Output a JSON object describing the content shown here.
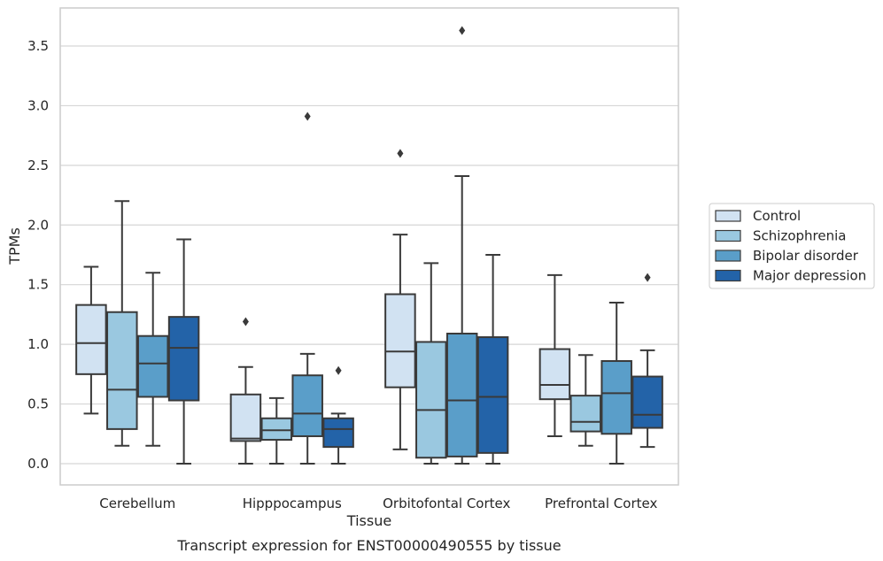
{
  "caption": "Transcript expression for ENST00000490555 by tissue",
  "chart_data": {
    "type": "box",
    "xlabel": "Tissue",
    "ylabel": "TPMs",
    "ylim": [
      -0.17,
      3.85
    ],
    "yticks": [
      0.0,
      0.5,
      1.0,
      1.5,
      2.0,
      2.5,
      3.0,
      3.5
    ],
    "ytick_labels": [
      "0.0",
      "0.5",
      "1.0",
      "1.5",
      "2.0",
      "2.5",
      "3.0",
      "3.5"
    ],
    "grid": "horizontal",
    "legend_placement": "right",
    "categories": [
      "Cerebellum",
      "Hipppocampus",
      "Orbitofontal Cortex",
      "Prefrontal Cortex"
    ],
    "series": [
      {
        "name": "Control",
        "color": "#d1e2f2",
        "boxes": [
          {
            "whisker_low": 0.42,
            "q1": 0.75,
            "median": 1.01,
            "q3": 1.33,
            "whisker_high": 1.65,
            "outliers": []
          },
          {
            "whisker_low": 0.0,
            "q1": 0.19,
            "median": 0.21,
            "q3": 0.58,
            "whisker_high": 0.81,
            "outliers": [
              1.19
            ]
          },
          {
            "whisker_low": 0.12,
            "q1": 0.64,
            "median": 0.94,
            "q3": 1.42,
            "whisker_high": 1.92,
            "outliers": [
              2.6
            ]
          },
          {
            "whisker_low": 0.23,
            "q1": 0.54,
            "median": 0.66,
            "q3": 0.96,
            "whisker_high": 1.58,
            "outliers": []
          }
        ]
      },
      {
        "name": "Schizophrenia",
        "color": "#9ac8e0",
        "boxes": [
          {
            "whisker_low": 0.15,
            "q1": 0.29,
            "median": 0.62,
            "q3": 1.27,
            "whisker_high": 2.2,
            "outliers": []
          },
          {
            "whisker_low": 0.0,
            "q1": 0.2,
            "median": 0.28,
            "q3": 0.38,
            "whisker_high": 0.55,
            "outliers": []
          },
          {
            "whisker_low": 0.0,
            "q1": 0.05,
            "median": 0.45,
            "q3": 1.02,
            "whisker_high": 1.68,
            "outliers": []
          },
          {
            "whisker_low": 0.15,
            "q1": 0.27,
            "median": 0.35,
            "q3": 0.57,
            "whisker_high": 0.91,
            "outliers": []
          }
        ]
      },
      {
        "name": "Bipolar disorder",
        "color": "#5a9ec9",
        "boxes": [
          {
            "whisker_low": 0.15,
            "q1": 0.56,
            "median": 0.84,
            "q3": 1.07,
            "whisker_high": 1.6,
            "outliers": []
          },
          {
            "whisker_low": 0.0,
            "q1": 0.23,
            "median": 0.42,
            "q3": 0.74,
            "whisker_high": 0.92,
            "outliers": [
              2.91
            ]
          },
          {
            "whisker_low": 0.0,
            "q1": 0.06,
            "median": 0.53,
            "q3": 1.09,
            "whisker_high": 2.41,
            "outliers": [
              3.63
            ]
          },
          {
            "whisker_low": 0.0,
            "q1": 0.25,
            "median": 0.59,
            "q3": 0.86,
            "whisker_high": 1.35,
            "outliers": []
          }
        ]
      },
      {
        "name": "Major depression",
        "color": "#2363a8",
        "boxes": [
          {
            "whisker_low": 0.0,
            "q1": 0.53,
            "median": 0.97,
            "q3": 1.23,
            "whisker_high": 1.88,
            "outliers": []
          },
          {
            "whisker_low": 0.0,
            "q1": 0.14,
            "median": 0.29,
            "q3": 0.38,
            "whisker_high": 0.42,
            "outliers": [
              0.78
            ]
          },
          {
            "whisker_low": 0.0,
            "q1": 0.09,
            "median": 0.56,
            "q3": 1.06,
            "whisker_high": 1.75,
            "outliers": []
          },
          {
            "whisker_low": 0.14,
            "q1": 0.3,
            "median": 0.41,
            "q3": 0.73,
            "whisker_high": 0.95,
            "outliers": [
              1.56
            ]
          }
        ]
      }
    ]
  }
}
